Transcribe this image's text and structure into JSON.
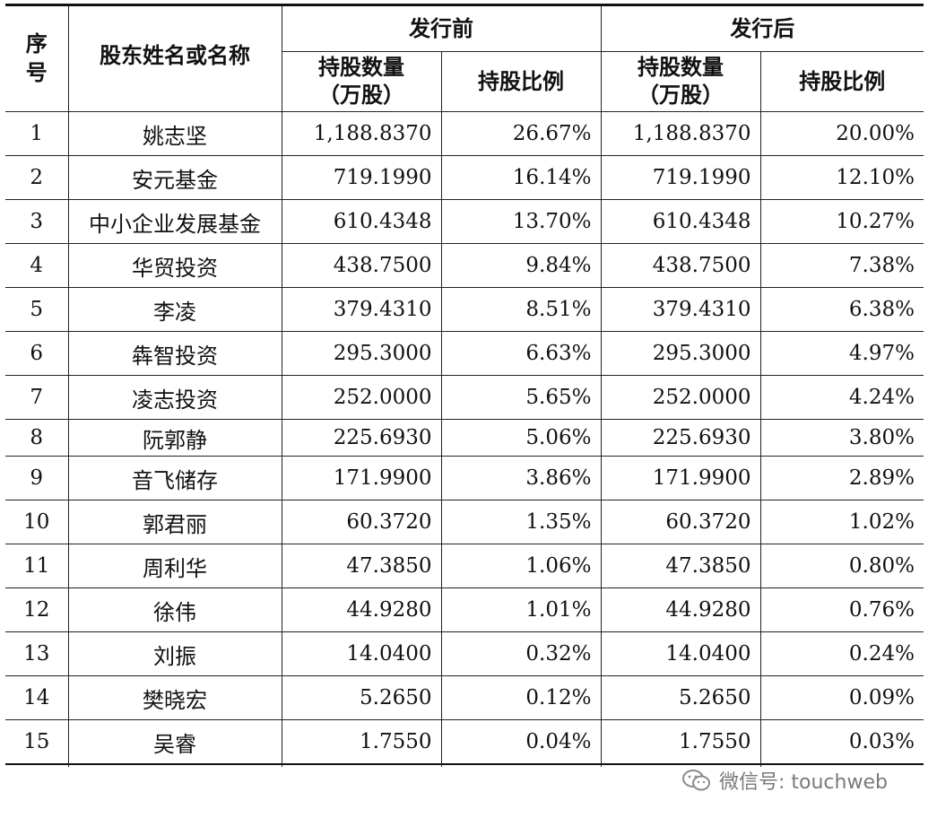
{
  "header": {
    "seq": "序号",
    "name": "股东姓名或名称",
    "before": "发行前",
    "after": "发行后",
    "shares_line1": "持股数量",
    "shares_line2": "（万股）",
    "ratio": "持股比例"
  },
  "rows": [
    {
      "no": "1",
      "name": "姚志坚",
      "before_shares": "1,188.8370",
      "before_ratio": "26.67%",
      "after_shares": "1,188.8370",
      "after_ratio": "20.00%"
    },
    {
      "no": "2",
      "name": "安元基金",
      "before_shares": "719.1990",
      "before_ratio": "16.14%",
      "after_shares": "719.1990",
      "after_ratio": "12.10%"
    },
    {
      "no": "3",
      "name": "中小企业发展基金",
      "before_shares": "610.4348",
      "before_ratio": "13.70%",
      "after_shares": "610.4348",
      "after_ratio": "10.27%"
    },
    {
      "no": "4",
      "name": "华贸投资",
      "before_shares": "438.7500",
      "before_ratio": "9.84%",
      "after_shares": "438.7500",
      "after_ratio": "7.38%"
    },
    {
      "no": "5",
      "name": "李凌",
      "before_shares": "379.4310",
      "before_ratio": "8.51%",
      "after_shares": "379.4310",
      "after_ratio": "6.38%"
    },
    {
      "no": "6",
      "name": "犇智投资",
      "before_shares": "295.3000",
      "before_ratio": "6.63%",
      "after_shares": "295.3000",
      "after_ratio": "4.97%"
    },
    {
      "no": "7",
      "name": "凌志投资",
      "before_shares": "252.0000",
      "before_ratio": "5.65%",
      "after_shares": "252.0000",
      "after_ratio": "4.24%"
    },
    {
      "no": "8",
      "name": "阮郭静",
      "before_shares": "225.6930",
      "before_ratio": "5.06%",
      "after_shares": "225.6930",
      "after_ratio": "3.80%"
    },
    {
      "no": "9",
      "name": "音飞储存",
      "before_shares": "171.9900",
      "before_ratio": "3.86%",
      "after_shares": "171.9900",
      "after_ratio": "2.89%"
    },
    {
      "no": "10",
      "name": "郭君丽",
      "before_shares": "60.3720",
      "before_ratio": "1.35%",
      "after_shares": "60.3720",
      "after_ratio": "1.02%"
    },
    {
      "no": "11",
      "name": "周利华",
      "before_shares": "47.3850",
      "before_ratio": "1.06%",
      "after_shares": "47.3850",
      "after_ratio": "0.80%"
    },
    {
      "no": "12",
      "name": "徐伟",
      "before_shares": "44.9280",
      "before_ratio": "1.01%",
      "after_shares": "44.9280",
      "after_ratio": "0.76%"
    },
    {
      "no": "13",
      "name": "刘振",
      "before_shares": "14.0400",
      "before_ratio": "0.32%",
      "after_shares": "14.0400",
      "after_ratio": "0.24%"
    },
    {
      "no": "14",
      "name": "樊晓宏",
      "before_shares": "5.2650",
      "before_ratio": "0.12%",
      "after_shares": "5.2650",
      "after_ratio": "0.09%"
    },
    {
      "no": "15",
      "name": "吴睿",
      "before_shares": "1.7550",
      "before_ratio": "0.04%",
      "after_shares": "1.7550",
      "after_ratio": "0.03%"
    }
  ],
  "watermark": {
    "text": "微信号: touchweb",
    "icon": "wechat-icon",
    "color": "#7a7a7a"
  }
}
